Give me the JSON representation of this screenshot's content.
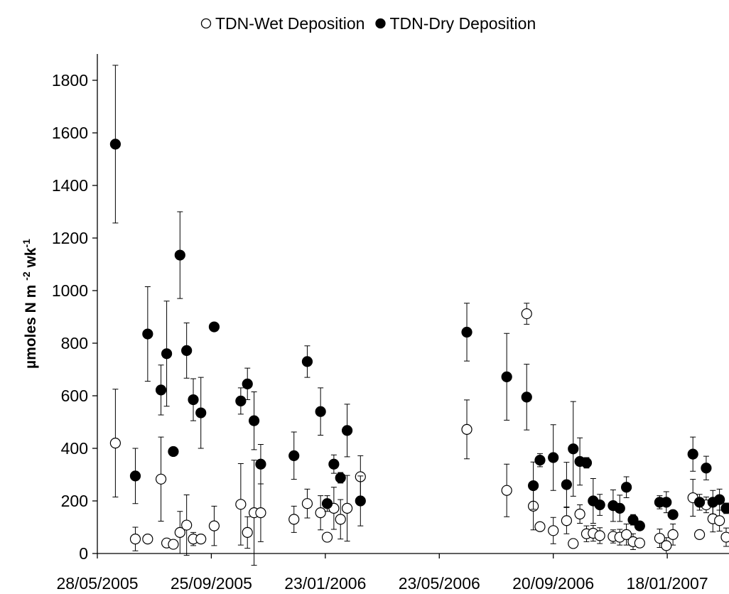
{
  "chart_data": {
    "type": "scatter",
    "ylabel_parts": [
      "µmoles N m ",
      "-2",
      " wk",
      "-1"
    ],
    "x": [
      "2005-06-16",
      "2005-07-07",
      "2005-07-20",
      "2005-08-03",
      "2005-08-09",
      "2005-08-16",
      "2005-08-23",
      "2005-08-30",
      "2005-09-06",
      "2005-09-14",
      "2005-09-28",
      "2005-10-26",
      "2005-11-02",
      "2005-11-09",
      "2005-11-16",
      "2005-12-21",
      "2006-01-04",
      "2006-01-18",
      "2006-01-25",
      "2006-02-01",
      "2006-02-08",
      "2006-02-15",
      "2006-03-01",
      "2006-06-21",
      "2006-08-02",
      "2006-08-23",
      "2006-08-30",
      "2006-09-06",
      "2006-09-20",
      "2006-10-04",
      "2006-10-11",
      "2006-10-18",
      "2006-10-25",
      "2006-11-01",
      "2006-11-08",
      "2006-11-22",
      "2006-11-29",
      "2006-12-06",
      "2006-12-13",
      "2006-12-20",
      "2007-01-10",
      "2007-01-17",
      "2007-01-24",
      "2007-02-14",
      "2007-02-21",
      "2007-02-28",
      "2007-03-07",
      "2007-03-14",
      "2007-03-21"
    ],
    "series": [
      {
        "name": "TDN-Wet Deposition",
        "color": "#ffffff",
        "values": [
          420,
          55,
          55,
          283,
          40,
          35,
          80,
          108,
          55,
          55,
          105,
          187,
          80,
          155,
          155,
          130,
          190,
          155,
          62,
          172,
          130,
          172,
          292,
          472,
          240,
          912,
          180,
          102,
          87,
          125,
          38,
          150,
          75,
          77,
          68,
          65,
          62,
          72,
          45,
          40,
          58,
          30,
          72,
          212,
          72,
          185,
          132,
          125,
          62
        ],
        "errors": [
          205,
          45,
          null,
          160,
          null,
          null,
          80,
          115,
          25,
          null,
          75,
          155,
          60,
          200,
          110,
          50,
          55,
          65,
          null,
          80,
          75,
          125,
          80,
          112,
          100,
          40,
          90,
          null,
          50,
          50,
          null,
          35,
          30,
          30,
          30,
          25,
          30,
          40,
          30,
          null,
          35,
          30,
          40,
          70,
          null,
          30,
          50,
          40,
          35
        ]
      },
      {
        "name": "TDN-Dry Deposition",
        "color": "#000000",
        "values": [
          1557,
          295,
          835,
          622,
          760,
          388,
          1135,
          772,
          585,
          535,
          862,
          580,
          645,
          505,
          340,
          372,
          730,
          540,
          190,
          340,
          288,
          468,
          200,
          842,
          672,
          595,
          258,
          355,
          365,
          262,
          398,
          350,
          345,
          200,
          185,
          182,
          172,
          252,
          128,
          105,
          195,
          195,
          148,
          378,
          195,
          325,
          195,
          205,
          172
        ],
        "errors": [
          300,
          105,
          180,
          95,
          200,
          null,
          165,
          105,
          80,
          135,
          null,
          50,
          60,
          110,
          75,
          90,
          60,
          90,
          30,
          35,
          20,
          100,
          95,
          110,
          165,
          125,
          90,
          25,
          125,
          85,
          180,
          90,
          20,
          85,
          40,
          60,
          50,
          40,
          20,
          null,
          25,
          40,
          null,
          65,
          30,
          45,
          45,
          40,
          20
        ]
      }
    ],
    "xlim": [
      "2005-05-28",
      "2007-03-24"
    ],
    "xticks": [
      {
        "value": "2005-05-28",
        "label": "28/05/2005"
      },
      {
        "value": "2005-09-25",
        "label": "25/09/2005"
      },
      {
        "value": "2006-01-23",
        "label": "23/01/2006"
      },
      {
        "value": "2006-05-23",
        "label": "23/05/2006"
      },
      {
        "value": "2006-09-20",
        "label": "20/09/2006"
      },
      {
        "value": "2007-01-18",
        "label": "18/01/2007"
      }
    ],
    "ylim": [
      0,
      1900
    ],
    "yticks": [
      0,
      200,
      400,
      600,
      800,
      1000,
      1200,
      1400,
      1600,
      1800
    ],
    "legend": "top"
  }
}
